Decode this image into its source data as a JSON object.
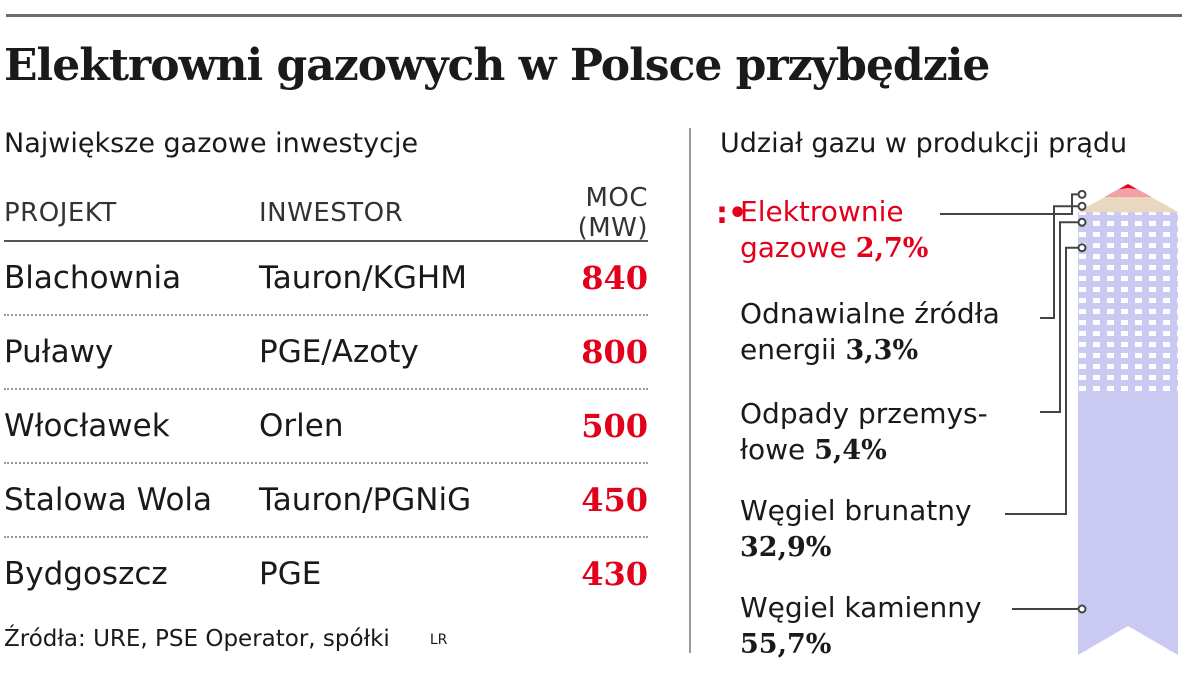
{
  "title": "Elektrowni gazowych w Polsce przybędzie",
  "left_subtitle": "Największe gazowe inwestycje",
  "right_subtitle": "Udział gazu w produkcji prądu",
  "table": {
    "headers": [
      "PROJEKT",
      "INWESTOR",
      "MOC (MW)"
    ],
    "rows": [
      {
        "project": "Blachownia",
        "investor": "Tauron/KGHM",
        "power": "840"
      },
      {
        "project": "Puławy",
        "investor": "PGE/Azoty",
        "power": "800"
      },
      {
        "project": "Włocławek",
        "investor": "Orlen",
        "power": "500"
      },
      {
        "project": "Stalowa Wola",
        "investor": "Tauron/PGNiG",
        "power": "450"
      },
      {
        "project": "Bydgoszcz",
        "investor": "PGE",
        "power": "430"
      }
    ]
  },
  "source": "Źródła: URE, PSE Operator, spółki",
  "credit": "LR",
  "legend_marker": ":•",
  "chart_data": [
    {
      "type": "table",
      "title": "Największe gazowe inwestycje",
      "columns": [
        "PROJEKT",
        "INWESTOR",
        "MOC (MW)"
      ],
      "rows": [
        [
          "Blachownia",
          "Tauron/KGHM",
          840
        ],
        [
          "Puławy",
          "PGE/Azoty",
          800
        ],
        [
          "Włocławek",
          "Orlen",
          500
        ],
        [
          "Stalowa Wola",
          "Tauron/PGNiG",
          450
        ],
        [
          "Bydgoszcz",
          "PGE",
          430
        ]
      ]
    },
    {
      "type": "bar",
      "stacked": true,
      "title": "Udział gazu w produkcji prądu",
      "unit": "%",
      "segments": [
        {
          "line1": "Elektrownie",
          "line2": "gazowe",
          "value_label": "2,7%",
          "value": 2.7,
          "color": "#e2001a"
        },
        {
          "line1": "Odnawialne źródła",
          "line2": "energii",
          "value_label": "3,3%",
          "value": 3.3,
          "color": "#e8d8c0"
        },
        {
          "line1": "Odpady przemys-",
          "line2": "łowe",
          "value_label": "5,4%",
          "value": 5.4,
          "color": "#c9c9f2"
        },
        {
          "line1": "Węgiel brunatny",
          "line2": "",
          "value_label": "32,9%",
          "value": 32.9,
          "color": "#c9c9f2"
        },
        {
          "line1": "Węgiel kamienny",
          "line2": "",
          "value_label": "55,7%",
          "value": 55.7,
          "color": "#c9c9f2"
        }
      ]
    }
  ]
}
